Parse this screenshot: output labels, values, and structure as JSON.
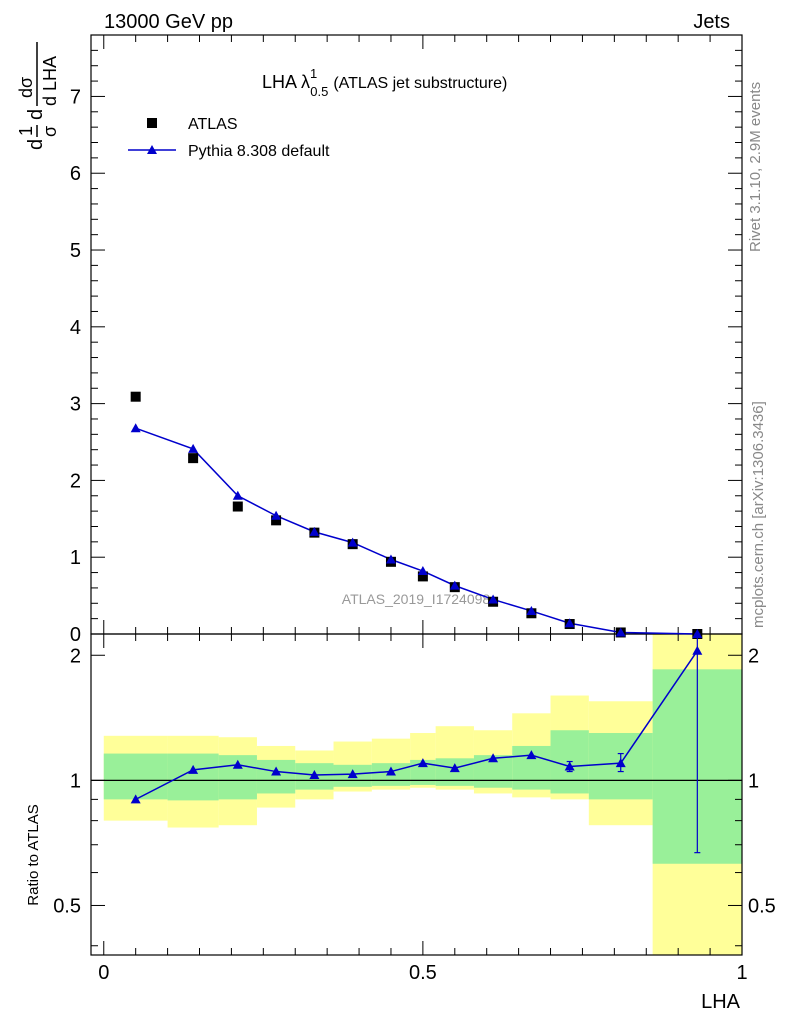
{
  "header": {
    "left_label": "13000 GeV pp",
    "right_label": "Jets"
  },
  "side_labels": {
    "version": "Rivet 3.1.10,  2.9M events",
    "site": "mcplots.cern.ch [arXiv:1306.3436]"
  },
  "watermark": "ATLAS_2019_I1724098",
  "chart_data": [
    {
      "type": "line",
      "panel": "main",
      "title_main": "LHA λ",
      "title_sup": "1",
      "title_sub": "0.5",
      "title_tail": "(ATLAS jet substructure)",
      "ylabel_parts": [
        "1",
        "σ",
        "dσ",
        "d LHA"
      ],
      "xlabel": "LHA",
      "xlim": [
        -0.02,
        1.0
      ],
      "ylim": [
        0,
        7.8
      ],
      "yticks": [
        0,
        1,
        2,
        3,
        4,
        5,
        6,
        7
      ],
      "legend_position": "top-left",
      "x": [
        0.05,
        0.14,
        0.21,
        0.27,
        0.33,
        0.39,
        0.45,
        0.5,
        0.55,
        0.61,
        0.67,
        0.73,
        0.81,
        0.93
      ],
      "series": [
        {
          "name": "ATLAS",
          "marker": "square",
          "color": "#000000",
          "values": [
            3.09,
            2.29,
            1.66,
            1.48,
            1.32,
            1.17,
            0.94,
            0.75,
            0.61,
            0.42,
            0.27,
            0.13,
            0.02,
            0.0
          ]
        },
        {
          "name": "Pythia 8.308 default",
          "marker": "triangle",
          "color": "#0000cc",
          "values": [
            2.68,
            2.41,
            1.8,
            1.54,
            1.33,
            1.19,
            0.97,
            0.82,
            0.63,
            0.45,
            0.3,
            0.14,
            0.02,
            0.0
          ]
        }
      ]
    },
    {
      "type": "line",
      "panel": "ratio",
      "ylabel": "Ratio to ATLAS",
      "xlabel": "LHA",
      "xlim": [
        -0.02,
        1.0
      ],
      "ylim": [
        0.38,
        2.25
      ],
      "yscale": "log",
      "yticks": [
        0.5,
        1,
        2
      ],
      "xticks": [
        0,
        0.5,
        1
      ],
      "x": [
        0.05,
        0.14,
        0.21,
        0.27,
        0.33,
        0.39,
        0.45,
        0.5,
        0.55,
        0.61,
        0.67,
        0.73,
        0.81,
        0.93
      ],
      "series": [
        {
          "name": "Pythia 8.308 default",
          "color": "#0000cc",
          "values": [
            0.9,
            1.06,
            1.09,
            1.05,
            1.03,
            1.035,
            1.05,
            1.1,
            1.07,
            1.13,
            1.15,
            1.08,
            1.1,
            2.05
          ],
          "err_low": [
            0.9,
            1.06,
            1.09,
            1.05,
            1.03,
            1.035,
            1.05,
            1.1,
            1.07,
            1.13,
            1.15,
            1.05,
            1.05,
            0.67
          ],
          "err_high": [
            0.9,
            1.06,
            1.09,
            1.05,
            1.03,
            1.035,
            1.05,
            1.1,
            1.07,
            1.13,
            1.15,
            1.11,
            1.16,
            2.25
          ]
        }
      ],
      "bands": {
        "edges": [
          0.0,
          0.1,
          0.18,
          0.24,
          0.3,
          0.36,
          0.42,
          0.48,
          0.52,
          0.58,
          0.64,
          0.7,
          0.76,
          0.86,
          1.0
        ],
        "inner_color": "#99f099",
        "outer_color": "#ffff99",
        "inner_low": [
          0.9,
          0.895,
          0.9,
          0.93,
          0.95,
          0.965,
          0.97,
          0.975,
          0.97,
          0.96,
          0.95,
          0.93,
          0.9,
          0.63
        ],
        "inner_high": [
          1.16,
          1.16,
          1.15,
          1.12,
          1.1,
          1.09,
          1.1,
          1.12,
          1.13,
          1.15,
          1.21,
          1.32,
          1.3,
          1.85
        ],
        "outer_low": [
          0.8,
          0.77,
          0.78,
          0.86,
          0.9,
          0.94,
          0.95,
          0.96,
          0.95,
          0.93,
          0.91,
          0.9,
          0.78,
          0.36
        ],
        "outer_high": [
          1.28,
          1.28,
          1.27,
          1.21,
          1.18,
          1.24,
          1.26,
          1.3,
          1.35,
          1.32,
          1.45,
          1.6,
          1.55,
          2.25
        ]
      }
    }
  ]
}
